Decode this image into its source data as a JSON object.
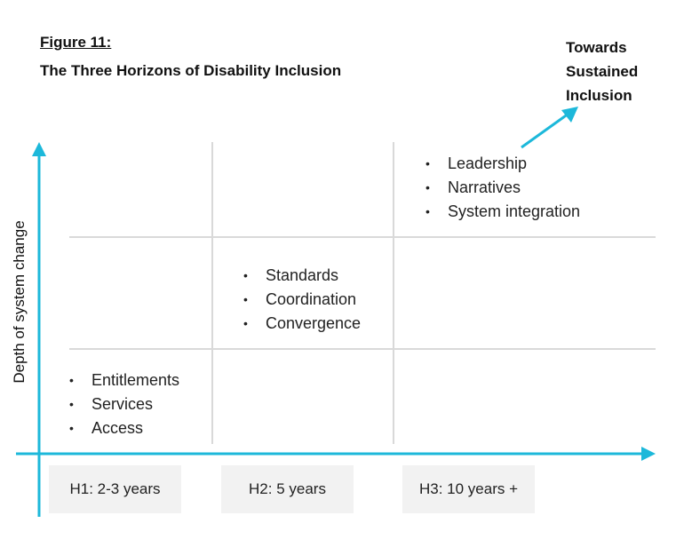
{
  "figure": {
    "label": "Figure 11:",
    "title": "The Three Horizons of Disability Inclusion"
  },
  "corner_label": [
    "Towards",
    "Sustained",
    "Inclusion"
  ],
  "y_axis_label": "Depth of system change",
  "horizons": [
    {
      "label": "H1: 2-3 years",
      "items": [
        "Entitlements",
        "Services",
        "Access"
      ]
    },
    {
      "label": "H2: 5 years",
      "items": [
        "Standards",
        "Coordination",
        "Convergence"
      ]
    },
    {
      "label": "H3: 10 years +",
      "items": [
        "Leadership",
        "Narratives",
        "System integration"
      ]
    }
  ],
  "colors": {
    "axis": "#1cb8da",
    "grid": "#d9d9d9",
    "box": "#f2f2f2"
  }
}
